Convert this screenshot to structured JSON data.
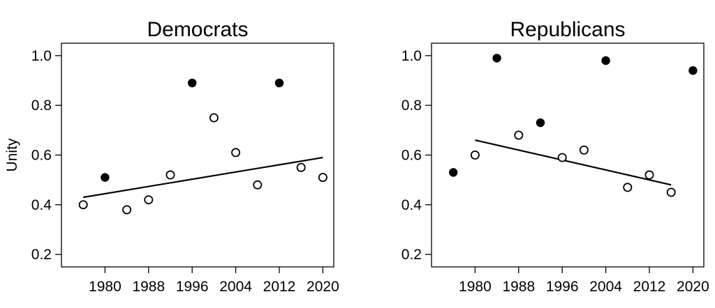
{
  "chart_data": [
    {
      "type": "scatter",
      "title": "Democrats",
      "ylabel": "Unity",
      "xlabel": "",
      "xlim": [
        1972,
        2022
      ],
      "ylim": [
        0.15,
        1.05
      ],
      "xticks": [
        1980,
        1988,
        1996,
        2004,
        2012,
        2020
      ],
      "yticks": [
        0.2,
        0.4,
        0.6,
        0.8,
        1.0
      ],
      "ytick_labels": [
        "0.2",
        "0.4",
        "0.6",
        "0.8",
        "1.0"
      ],
      "points": [
        {
          "x": 1976,
          "y": 0.4,
          "filled": false
        },
        {
          "x": 1980,
          "y": 0.51,
          "filled": true
        },
        {
          "x": 1984,
          "y": 0.38,
          "filled": false
        },
        {
          "x": 1988,
          "y": 0.42,
          "filled": false
        },
        {
          "x": 1992,
          "y": 0.52,
          "filled": false
        },
        {
          "x": 1996,
          "y": 0.89,
          "filled": true
        },
        {
          "x": 2000,
          "y": 0.75,
          "filled": false
        },
        {
          "x": 2004,
          "y": 0.61,
          "filled": false
        },
        {
          "x": 2008,
          "y": 0.48,
          "filled": false
        },
        {
          "x": 2012,
          "y": 0.89,
          "filled": true
        },
        {
          "x": 2016,
          "y": 0.55,
          "filled": false
        },
        {
          "x": 2020,
          "y": 0.51,
          "filled": false
        }
      ],
      "trend": {
        "x": [
          1976,
          2020
        ],
        "y": [
          0.43,
          0.59
        ]
      }
    },
    {
      "type": "scatter",
      "title": "Republicans",
      "ylabel": "",
      "xlabel": "",
      "xlim": [
        1972,
        2022
      ],
      "ylim": [
        0.15,
        1.05
      ],
      "xticks": [
        1980,
        1988,
        1996,
        2004,
        2012,
        2020
      ],
      "yticks": [
        0.2,
        0.4,
        0.6,
        0.8,
        1.0
      ],
      "ytick_labels": [
        "0.2",
        "0.4",
        "0.6",
        "0.8",
        "1.0"
      ],
      "points": [
        {
          "x": 1976,
          "y": 0.53,
          "filled": true
        },
        {
          "x": 1980,
          "y": 0.6,
          "filled": false
        },
        {
          "x": 1984,
          "y": 0.99,
          "filled": true
        },
        {
          "x": 1988,
          "y": 0.68,
          "filled": false
        },
        {
          "x": 1992,
          "y": 0.73,
          "filled": true
        },
        {
          "x": 1996,
          "y": 0.59,
          "filled": false
        },
        {
          "x": 2000,
          "y": 0.62,
          "filled": false
        },
        {
          "x": 2004,
          "y": 0.98,
          "filled": true
        },
        {
          "x": 2008,
          "y": 0.47,
          "filled": false
        },
        {
          "x": 2012,
          "y": 0.52,
          "filled": false
        },
        {
          "x": 2016,
          "y": 0.45,
          "filled": false
        },
        {
          "x": 2020,
          "y": 0.94,
          "filled": true
        }
      ],
      "trend": {
        "x": [
          1980,
          2016
        ],
        "y": [
          0.66,
          0.48
        ]
      }
    }
  ]
}
